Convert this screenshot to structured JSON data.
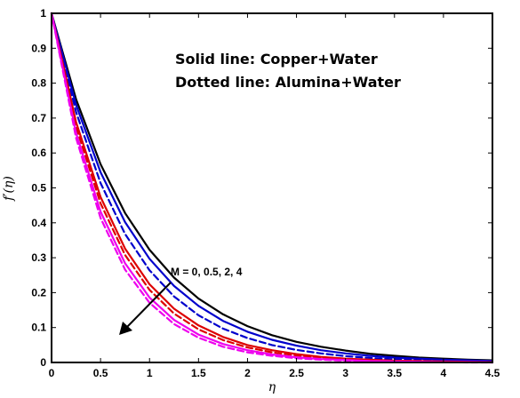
{
  "chart_data": {
    "type": "line",
    "xlabel": "η",
    "ylabel": "f′(η)",
    "xlim": [
      0,
      4.5
    ],
    "ylim": [
      0,
      1
    ],
    "xticks": [
      0,
      0.5,
      1,
      1.5,
      2,
      2.5,
      3,
      3.5,
      4,
      4.5
    ],
    "yticks": [
      0,
      0.1,
      0.2,
      0.3,
      0.4,
      0.5,
      0.6,
      0.7,
      0.8,
      0.9,
      1
    ],
    "xtick_labels": [
      "0",
      "0.5",
      "1",
      "1.5",
      "2",
      "2.5",
      "3",
      "3.5",
      "4",
      "4.5"
    ],
    "ytick_labels": [
      "0",
      "0.1",
      "0.2",
      "0.3",
      "0.4",
      "0.5",
      "0.6",
      "0.7",
      "0.8",
      "0.9",
      "1"
    ],
    "grid": false,
    "annotations": {
      "solid_note": "Solid line: Copper+Water",
      "dotted_note": "Dotted line: Alumina+Water",
      "arrow_label": "M = 0, 0.5, 2, 4"
    },
    "x": [
      0,
      0.25,
      0.5,
      0.75,
      1,
      1.25,
      1.5,
      1.75,
      2,
      2.25,
      2.5,
      2.75,
      3,
      3.25,
      3.5,
      3.75,
      4,
      4.25,
      4.5
    ],
    "series": [
      {
        "color": "#000000",
        "style": "solid",
        "values": [
          1,
          0.754,
          0.568,
          0.428,
          0.323,
          0.243,
          0.183,
          0.138,
          0.104,
          0.078,
          0.059,
          0.045,
          0.034,
          0.025,
          0.019,
          0.014,
          0.011,
          0.008,
          0.006
        ]
      },
      {
        "color": "#0000cc",
        "style": "solid",
        "values": [
          1,
          0.738,
          0.545,
          0.402,
          0.297,
          0.219,
          0.162,
          0.119,
          0.088,
          0.065,
          0.048,
          0.035,
          0.026,
          0.019,
          0.014,
          0.011,
          0.008,
          0.006,
          0.004
        ]
      },
      {
        "color": "#0000cc",
        "style": "dashed",
        "values": [
          1,
          0.717,
          0.514,
          0.368,
          0.264,
          0.189,
          0.135,
          0.097,
          0.07,
          0.05,
          0.036,
          0.026,
          0.018,
          0.013,
          0.009,
          0.007,
          0.005,
          0.003,
          0.002
        ]
      },
      {
        "color": "#dd0000",
        "style": "solid",
        "values": [
          1,
          0.688,
          0.474,
          0.326,
          0.224,
          0.154,
          0.106,
          0.073,
          0.05,
          0.035,
          0.024,
          0.016,
          0.011,
          0.008,
          0.005,
          0.004,
          0.003,
          0.002,
          0.001
        ]
      },
      {
        "color": "#dd0000",
        "style": "dashed",
        "values": [
          1,
          0.675,
          0.456,
          0.308,
          0.208,
          0.14,
          0.095,
          0.064,
          0.043,
          0.029,
          0.02,
          0.013,
          0.009,
          0.006,
          0.004,
          0.003,
          0.002,
          0.001,
          0.001
        ]
      },
      {
        "color": "#ee00ee",
        "style": "solid",
        "values": [
          1,
          0.657,
          0.432,
          0.284,
          0.186,
          0.122,
          0.08,
          0.053,
          0.035,
          0.023,
          0.015,
          0.01,
          0.007,
          0.004,
          0.003,
          0.002,
          0.001,
          0.001,
          0.0
        ]
      },
      {
        "color": "#ee00ee",
        "style": "dashed",
        "values": [
          1,
          0.643,
          0.414,
          0.266,
          0.171,
          0.11,
          0.071,
          0.045,
          0.029,
          0.019,
          0.012,
          0.008,
          0.005,
          0.003,
          0.002,
          0.001,
          0.001,
          0.0,
          0.0
        ]
      }
    ]
  }
}
